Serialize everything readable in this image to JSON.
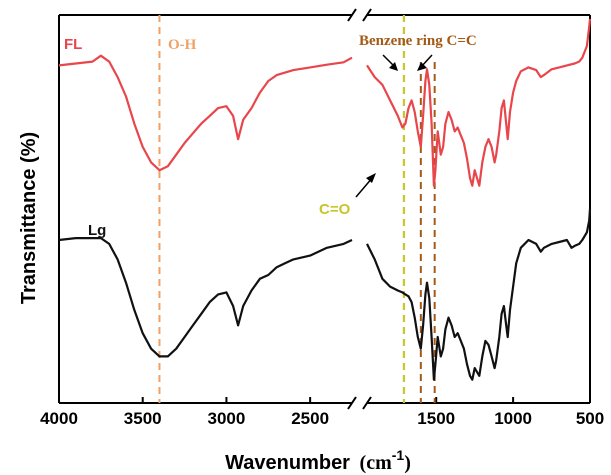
{
  "chart_data": {
    "type": "line",
    "xlabel": "Wavenumber",
    "xlabel_unit": "(cm",
    "xlabel_unit_sup": "-1",
    "xlabel_unit_close": ")",
    "ylabel": "Transmittance (%)",
    "x_reversed": true,
    "x_axis_break": [
      2150,
      1950
    ],
    "x_ticks": [
      {
        "value": 4000,
        "label": "4000"
      },
      {
        "value": 3500,
        "label": "3500"
      },
      {
        "value": 3000,
        "label": "3000"
      },
      {
        "value": 2500,
        "label": "2500"
      },
      {
        "value": 1500,
        "label": "1500"
      },
      {
        "value": 1000,
        "label": "1000"
      },
      {
        "value": 500,
        "label": "500"
      }
    ],
    "y_ticks_shown": false,
    "series": [
      {
        "name": "FL",
        "color": "#e8464b",
        "points": [
          [
            4000,
            0.87
          ],
          [
            3900,
            0.875
          ],
          [
            3800,
            0.88
          ],
          [
            3750,
            0.895
          ],
          [
            3700,
            0.88
          ],
          [
            3650,
            0.84
          ],
          [
            3600,
            0.79
          ],
          [
            3550,
            0.72
          ],
          [
            3500,
            0.66
          ],
          [
            3450,
            0.62
          ],
          [
            3400,
            0.6
          ],
          [
            3350,
            0.61
          ],
          [
            3300,
            0.64
          ],
          [
            3250,
            0.67
          ],
          [
            3200,
            0.695
          ],
          [
            3150,
            0.72
          ],
          [
            3100,
            0.74
          ],
          [
            3050,
            0.76
          ],
          [
            3000,
            0.765
          ],
          [
            2960,
            0.74
          ],
          [
            2930,
            0.68
          ],
          [
            2900,
            0.73
          ],
          [
            2850,
            0.76
          ],
          [
            2800,
            0.8
          ],
          [
            2750,
            0.83
          ],
          [
            2700,
            0.845
          ],
          [
            2600,
            0.858
          ],
          [
            2500,
            0.865
          ],
          [
            2400,
            0.872
          ],
          [
            2300,
            0.878
          ],
          [
            2250,
            0.89
          ],
          [
            1950,
            0.87
          ],
          [
            1900,
            0.84
          ],
          [
            1850,
            0.82
          ],
          [
            1800,
            0.78
          ],
          [
            1750,
            0.74
          ],
          [
            1720,
            0.71
          ],
          [
            1700,
            0.72
          ],
          [
            1680,
            0.76
          ],
          [
            1660,
            0.78
          ],
          [
            1640,
            0.75
          ],
          [
            1620,
            0.7
          ],
          [
            1600,
            0.66
          ],
          [
            1585,
            0.74
          ],
          [
            1570,
            0.83
          ],
          [
            1560,
            0.86
          ],
          [
            1545,
            0.82
          ],
          [
            1530,
            0.72
          ],
          [
            1515,
            0.56
          ],
          [
            1505,
            0.6
          ],
          [
            1490,
            0.7
          ],
          [
            1470,
            0.64
          ],
          [
            1455,
            0.66
          ],
          [
            1440,
            0.72
          ],
          [
            1420,
            0.75
          ],
          [
            1400,
            0.73
          ],
          [
            1380,
            0.7
          ],
          [
            1360,
            0.71
          ],
          [
            1340,
            0.69
          ],
          [
            1320,
            0.67
          ],
          [
            1300,
            0.63
          ],
          [
            1280,
            0.58
          ],
          [
            1265,
            0.56
          ],
          [
            1250,
            0.6
          ],
          [
            1235,
            0.58
          ],
          [
            1220,
            0.56
          ],
          [
            1200,
            0.62
          ],
          [
            1180,
            0.66
          ],
          [
            1160,
            0.68
          ],
          [
            1140,
            0.66
          ],
          [
            1120,
            0.62
          ],
          [
            1110,
            0.64
          ],
          [
            1090,
            0.7
          ],
          [
            1075,
            0.76
          ],
          [
            1060,
            0.78
          ],
          [
            1045,
            0.72
          ],
          [
            1035,
            0.68
          ],
          [
            1020,
            0.75
          ],
          [
            1000,
            0.8
          ],
          [
            980,
            0.83
          ],
          [
            950,
            0.855
          ],
          [
            900,
            0.865
          ],
          [
            850,
            0.858
          ],
          [
            820,
            0.84
          ],
          [
            800,
            0.845
          ],
          [
            750,
            0.86
          ],
          [
            700,
            0.865
          ],
          [
            650,
            0.87
          ],
          [
            600,
            0.875
          ],
          [
            570,
            0.88
          ],
          [
            550,
            0.89
          ],
          [
            520,
            0.92
          ],
          [
            505,
            0.97
          ],
          [
            500,
            0.99
          ]
        ]
      },
      {
        "name": "Lg",
        "color": "#111111",
        "points": [
          [
            4000,
            0.42
          ],
          [
            3900,
            0.425
          ],
          [
            3800,
            0.425
          ],
          [
            3750,
            0.425
          ],
          [
            3700,
            0.41
          ],
          [
            3650,
            0.37
          ],
          [
            3600,
            0.31
          ],
          [
            3550,
            0.24
          ],
          [
            3500,
            0.18
          ],
          [
            3450,
            0.14
          ],
          [
            3400,
            0.12
          ],
          [
            3350,
            0.12
          ],
          [
            3300,
            0.14
          ],
          [
            3250,
            0.17
          ],
          [
            3200,
            0.2
          ],
          [
            3150,
            0.23
          ],
          [
            3100,
            0.26
          ],
          [
            3050,
            0.28
          ],
          [
            3000,
            0.285
          ],
          [
            2960,
            0.25
          ],
          [
            2930,
            0.2
          ],
          [
            2900,
            0.25
          ],
          [
            2850,
            0.29
          ],
          [
            2800,
            0.32
          ],
          [
            2750,
            0.33
          ],
          [
            2700,
            0.35
          ],
          [
            2650,
            0.36
          ],
          [
            2600,
            0.37
          ],
          [
            2500,
            0.38
          ],
          [
            2400,
            0.4
          ],
          [
            2300,
            0.41
          ],
          [
            2250,
            0.42
          ],
          [
            1950,
            0.41
          ],
          [
            1900,
            0.37
          ],
          [
            1850,
            0.32
          ],
          [
            1800,
            0.3
          ],
          [
            1750,
            0.29
          ],
          [
            1720,
            0.285
          ],
          [
            1700,
            0.28
          ],
          [
            1680,
            0.275
          ],
          [
            1660,
            0.26
          ],
          [
            1640,
            0.22
          ],
          [
            1620,
            0.17
          ],
          [
            1600,
            0.14
          ],
          [
            1585,
            0.2
          ],
          [
            1570,
            0.28
          ],
          [
            1560,
            0.31
          ],
          [
            1545,
            0.27
          ],
          [
            1530,
            0.17
          ],
          [
            1515,
            0.06
          ],
          [
            1505,
            0.1
          ],
          [
            1490,
            0.17
          ],
          [
            1470,
            0.12
          ],
          [
            1455,
            0.14
          ],
          [
            1440,
            0.19
          ],
          [
            1420,
            0.22
          ],
          [
            1400,
            0.2
          ],
          [
            1380,
            0.17
          ],
          [
            1360,
            0.18
          ],
          [
            1340,
            0.16
          ],
          [
            1320,
            0.14
          ],
          [
            1300,
            0.1
          ],
          [
            1280,
            0.07
          ],
          [
            1265,
            0.06
          ],
          [
            1250,
            0.09
          ],
          [
            1235,
            0.08
          ],
          [
            1220,
            0.07
          ],
          [
            1200,
            0.12
          ],
          [
            1180,
            0.16
          ],
          [
            1160,
            0.15
          ],
          [
            1140,
            0.12
          ],
          [
            1120,
            0.09
          ],
          [
            1110,
            0.11
          ],
          [
            1090,
            0.17
          ],
          [
            1075,
            0.23
          ],
          [
            1060,
            0.25
          ],
          [
            1045,
            0.2
          ],
          [
            1035,
            0.17
          ],
          [
            1020,
            0.24
          ],
          [
            1000,
            0.3
          ],
          [
            980,
            0.36
          ],
          [
            950,
            0.4
          ],
          [
            900,
            0.42
          ],
          [
            850,
            0.41
          ],
          [
            820,
            0.39
          ],
          [
            800,
            0.4
          ],
          [
            750,
            0.41
          ],
          [
            700,
            0.415
          ],
          [
            650,
            0.42
          ],
          [
            620,
            0.4
          ],
          [
            600,
            0.405
          ],
          [
            570,
            0.41
          ],
          [
            550,
            0.42
          ],
          [
            520,
            0.44
          ],
          [
            505,
            0.47
          ],
          [
            500,
            0.5
          ]
        ]
      }
    ],
    "series_labels": [
      {
        "text": "FL",
        "color": "#e8464b"
      },
      {
        "text": "Lg",
        "color": "#111111"
      }
    ],
    "annotations": [
      {
        "id": "oh",
        "text": "O-H",
        "x": 3400,
        "color": "#f0a165",
        "line_style": "dashed"
      },
      {
        "id": "co",
        "text": "C=O",
        "x": 1710,
        "color": "#c8c62a",
        "line_style": "dashed"
      },
      {
        "id": "benzene",
        "text": "Benzene ring C=C",
        "x": [
          1600,
          1510
        ],
        "color": "#a35a16",
        "line_style": "dashed"
      }
    ]
  }
}
